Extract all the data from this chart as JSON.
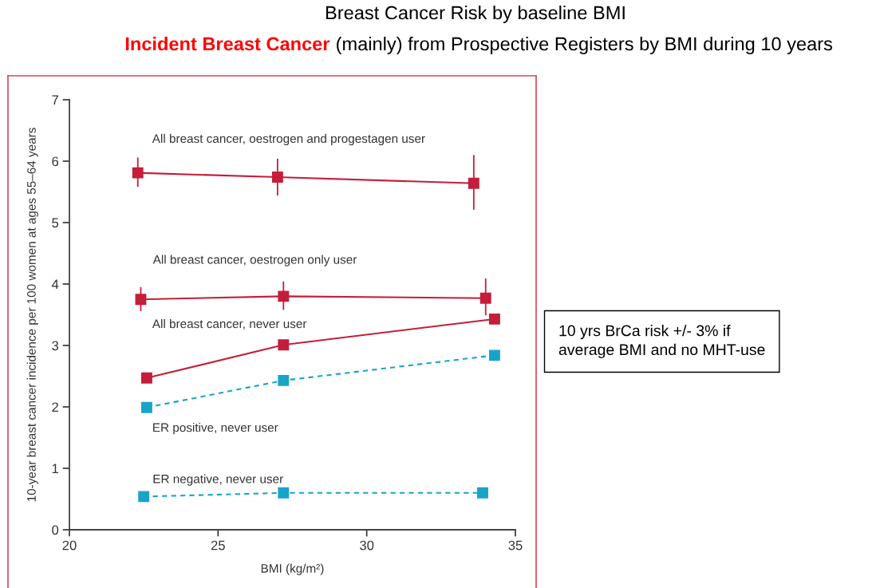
{
  "chart_data": {
    "type": "line",
    "title": "Breast Cancer Risk by baseline BMI",
    "subtitle": "Incident Breast Cancer (mainly) from Prospective Registers by BMI during 10 years",
    "xlabel": "BMI (kg/m²)",
    "ylabel": "10-year breast cancer incidence per 100 women at ages 55–64 years",
    "annotations": [
      "10 yrs BrCa risk +/- 3% if\naverage BMI and no MHT-use"
    ],
    "xlim": [
      20,
      35
    ],
    "xticks": [
      20,
      25,
      30,
      35
    ],
    "ylim": [
      0,
      7
    ],
    "yticks": [
      0,
      1,
      2,
      3,
      4,
      5,
      6,
      7
    ],
    "marker": "square",
    "series": [
      {
        "name": "All breast cancer, oestrogen and progestagen user",
        "color": "#c41e3a",
        "line_style": "solid",
        "x": [
          22.3,
          27.0,
          33.6
        ],
        "values": [
          5.81,
          5.74,
          5.64
        ],
        "errors": [
          [
            5.58,
            6.06
          ],
          [
            5.44,
            6.04
          ],
          [
            5.21,
            6.1
          ]
        ]
      },
      {
        "name": "All breast cancer, oestrogen only user",
        "color": "#c41e3a",
        "line_style": "solid",
        "x": [
          22.4,
          27.2,
          34.0
        ],
        "values": [
          3.75,
          3.8,
          3.77
        ],
        "errors": [
          [
            3.56,
            3.95
          ],
          [
            3.58,
            4.04
          ],
          [
            3.49,
            4.09
          ]
        ]
      },
      {
        "name": "All breast cancer, never user",
        "color": "#c41e3a",
        "line_style": "solid",
        "x": [
          22.6,
          27.2,
          34.3
        ],
        "values": [
          2.47,
          3.01,
          3.43
        ]
      },
      {
        "name": "ER positive, never user",
        "color": "#1aa3c8",
        "line_style": "dashed",
        "x": [
          22.6,
          27.2,
          34.3
        ],
        "values": [
          1.99,
          2.43,
          2.84
        ]
      },
      {
        "name": "ER negative, never user",
        "color": "#1aa3c8",
        "line_style": "dashed",
        "x": [
          22.5,
          27.2,
          33.9
        ],
        "values": [
          0.54,
          0.6,
          0.6
        ]
      }
    ]
  }
}
